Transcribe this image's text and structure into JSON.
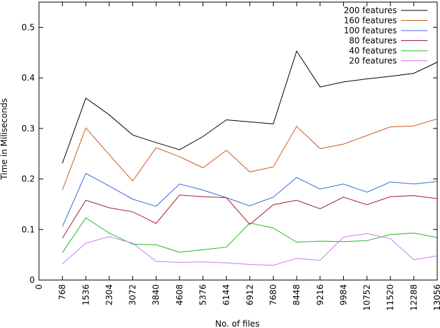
{
  "chart_data": {
    "type": "line",
    "xlabel": "No. of files",
    "ylabel": "Time in Miliseconds",
    "xlim": [
      0,
      13056
    ],
    "ylim": [
      0,
      0.55
    ],
    "x_ticks": [
      "0",
      "768",
      "1536",
      "2304",
      "3072",
      "3840",
      "4608",
      "5376",
      "6144",
      "6912",
      "7680",
      "8448",
      "9216",
      "9984",
      "10752",
      "11520",
      "12288",
      "13056"
    ],
    "y_ticks": [
      "0",
      "0.1",
      "0.2",
      "0.3",
      "0.4",
      "0.5"
    ],
    "legend_position": "top-right",
    "grid": false,
    "x": [
      768,
      1536,
      2304,
      3072,
      3840,
      4608,
      5376,
      6144,
      6912,
      7680,
      8448,
      9216,
      9984,
      10752,
      11520,
      12288,
      13056
    ],
    "series": [
      {
        "name": "200 features",
        "color": "#000000",
        "values": [
          0.231,
          0.36,
          0.327,
          0.287,
          0.272,
          0.258,
          0.284,
          0.317,
          0.313,
          0.309,
          0.453,
          0.382,
          0.392,
          0.398,
          0.403,
          0.409,
          0.431
        ]
      },
      {
        "name": "160 features",
        "color": "#d0581c",
        "values": [
          0.178,
          0.301,
          0.248,
          0.196,
          0.262,
          0.244,
          0.222,
          0.257,
          0.214,
          0.224,
          0.304,
          0.26,
          0.269,
          0.286,
          0.303,
          0.305,
          0.319
        ]
      },
      {
        "name": "100 features",
        "color": "#3c6ad8",
        "values": [
          0.106,
          0.211,
          0.186,
          0.16,
          0.146,
          0.19,
          0.178,
          0.163,
          0.147,
          0.164,
          0.203,
          0.18,
          0.19,
          0.174,
          0.194,
          0.19,
          0.195
        ]
      },
      {
        "name": "80 features",
        "color": "#a0202a",
        "values": [
          0.083,
          0.158,
          0.143,
          0.135,
          0.112,
          0.168,
          0.165,
          0.163,
          0.11,
          0.149,
          0.158,
          0.141,
          0.164,
          0.149,
          0.165,
          0.167,
          0.161
        ]
      },
      {
        "name": "40 features",
        "color": "#22bb22",
        "values": [
          0.054,
          0.123,
          0.093,
          0.071,
          0.07,
          0.055,
          0.06,
          0.065,
          0.113,
          0.103,
          0.075,
          0.077,
          0.076,
          0.078,
          0.09,
          0.093,
          0.084
        ]
      },
      {
        "name": "20 features",
        "color": "#cc77ee",
        "values": [
          0.032,
          0.073,
          0.086,
          0.073,
          0.037,
          0.035,
          0.036,
          0.034,
          0.031,
          0.029,
          0.043,
          0.039,
          0.085,
          0.092,
          0.082,
          0.04,
          0.048
        ]
      }
    ]
  }
}
